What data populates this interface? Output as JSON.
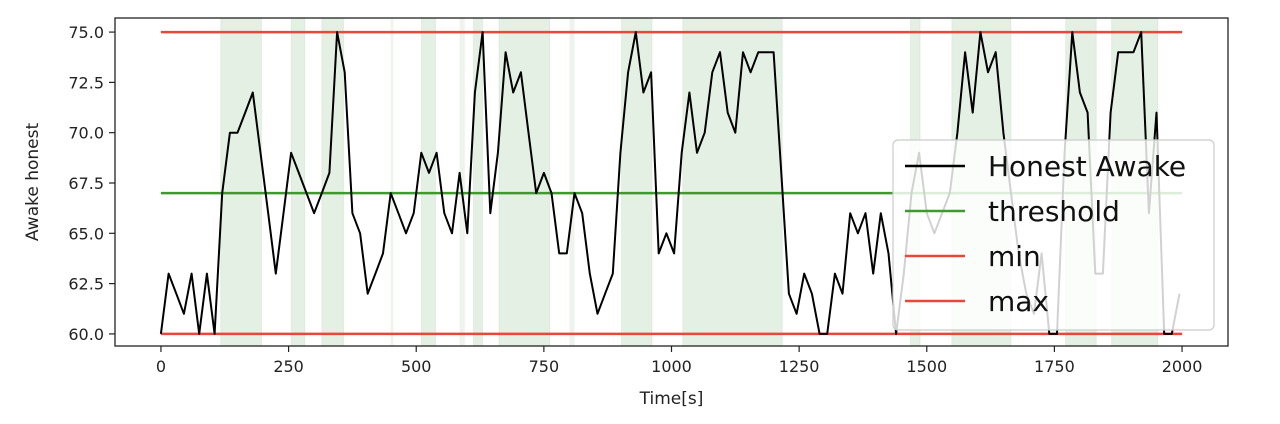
{
  "chart_data": {
    "type": "line",
    "title": "",
    "xlabel": "Time[s]",
    "ylabel": "Awake honest",
    "xlim": [
      -90,
      2090
    ],
    "ylim": [
      59.4,
      75.7
    ],
    "x_ticks": [
      0,
      250,
      500,
      750,
      1000,
      1250,
      1500,
      1750,
      2000
    ],
    "x_tick_labels": [
      "0",
      "250",
      "500",
      "750",
      "1000",
      "1250",
      "1500",
      "1750",
      "2000"
    ],
    "y_ticks": [
      60.0,
      62.5,
      65.0,
      67.5,
      70.0,
      72.5,
      75.0
    ],
    "y_tick_labels": [
      "60.0",
      "62.5",
      "65.0",
      "67.5",
      "70.0",
      "72.5",
      "75.0"
    ],
    "grid": false,
    "legend_position": "right",
    "shaded_regions": [
      [
        117,
        197
      ],
      [
        255,
        282
      ],
      [
        315,
        358
      ],
      [
        510,
        538
      ],
      [
        612,
        630
      ],
      [
        662,
        762
      ],
      [
        902,
        962
      ],
      [
        1022,
        1217
      ],
      [
        1468,
        1487
      ],
      [
        1549,
        1665
      ],
      [
        1772,
        1832
      ],
      [
        1862,
        1953
      ]
    ],
    "faint_regions": [
      [
        450,
        455
      ],
      [
        585,
        595
      ],
      [
        800,
        810
      ]
    ],
    "series": [
      {
        "name": "Honest Awake",
        "color": "#000000",
        "x": [
          0,
          15,
          30,
          45,
          60,
          75,
          90,
          105,
          120,
          135,
          150,
          165,
          180,
          195,
          210,
          225,
          240,
          255,
          270,
          285,
          300,
          315,
          330,
          345,
          360,
          375,
          390,
          405,
          420,
          435,
          450,
          465,
          480,
          495,
          510,
          525,
          540,
          555,
          570,
          585,
          600,
          615,
          630,
          645,
          660,
          675,
          690,
          705,
          720,
          735,
          750,
          765,
          780,
          795,
          810,
          825,
          840,
          855,
          870,
          885,
          900,
          915,
          930,
          945,
          960,
          975,
          990,
          1005,
          1020,
          1035,
          1050,
          1065,
          1080,
          1095,
          1110,
          1125,
          1140,
          1155,
          1170,
          1185,
          1200,
          1215,
          1230,
          1245,
          1260,
          1275,
          1290,
          1305,
          1320,
          1335,
          1350,
          1365,
          1380,
          1395,
          1410,
          1425,
          1440,
          1455,
          1470,
          1485,
          1500,
          1515,
          1530,
          1545,
          1560,
          1575,
          1590,
          1605,
          1620,
          1635,
          1650,
          1665,
          1680,
          1695,
          1710,
          1725,
          1740,
          1755,
          1770,
          1785,
          1800,
          1815,
          1830,
          1845,
          1860,
          1875,
          1890,
          1905,
          1920,
          1935,
          1950,
          1965,
          1980,
          1995
        ],
        "y": [
          60,
          63,
          62,
          61,
          63,
          60,
          63,
          60,
          67,
          70,
          70,
          71,
          72,
          69,
          66,
          63,
          66,
          69,
          68,
          67,
          66,
          67,
          68,
          75,
          73,
          66,
          65,
          62,
          63,
          64,
          67,
          66,
          65,
          66,
          69,
          68,
          69,
          66,
          65,
          68,
          65,
          72,
          75,
          66,
          69,
          74,
          72,
          73,
          70,
          67,
          68,
          67,
          64,
          64,
          67,
          66,
          63,
          61,
          62,
          63,
          69,
          73,
          75,
          72,
          73,
          64,
          65,
          64,
          69,
          72,
          69,
          70,
          73,
          74,
          71,
          70,
          74,
          73,
          74,
          74,
          74,
          68,
          62,
          61,
          63,
          62,
          60,
          60,
          63,
          62,
          66,
          65,
          66,
          63,
          66,
          64,
          60,
          63,
          67,
          69,
          66,
          65,
          66,
          67,
          70,
          74,
          71,
          75,
          73,
          74,
          70,
          67,
          64,
          62,
          61,
          64,
          60,
          60,
          69,
          75,
          72,
          71,
          63,
          63,
          71,
          74,
          74,
          74,
          75,
          66,
          71,
          60,
          60,
          62
        ]
      },
      {
        "name": "threshold",
        "color": "#3f9a2e",
        "x": [
          0,
          2000
        ],
        "y": [
          67,
          67
        ]
      },
      {
        "name": "min",
        "color": "#e8473a",
        "x": [
          0,
          2000
        ],
        "y": [
          60,
          60
        ]
      },
      {
        "name": "max",
        "color": "#e8473a",
        "x": [
          0,
          2000
        ],
        "y": [
          75,
          75
        ]
      }
    ]
  }
}
